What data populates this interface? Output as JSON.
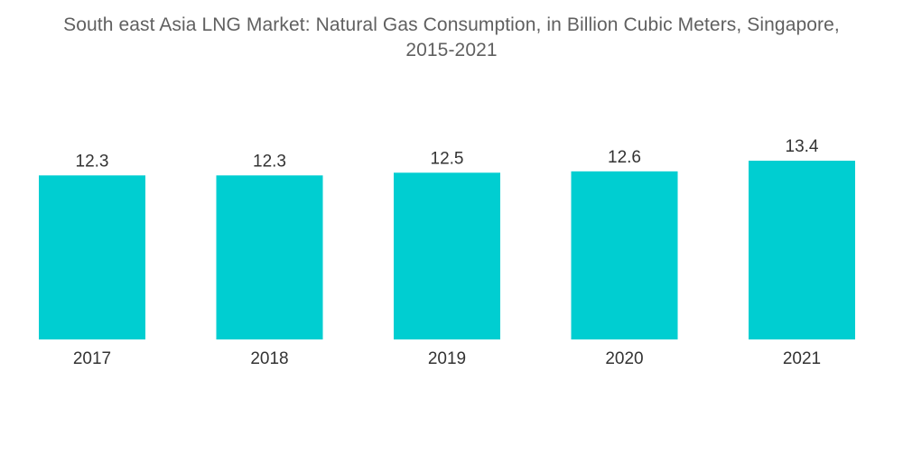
{
  "chart_data": {
    "type": "bar",
    "title_lines": [
      "South east Asia LNG Market: Natural Gas Consumption, in Billion Cubic Meters, Singapore,",
      "2015-2021"
    ],
    "categories": [
      "2017",
      "2018",
      "2019",
      "2020",
      "2021"
    ],
    "values": [
      12.3,
      12.3,
      12.5,
      12.6,
      13.4
    ],
    "value_labels": [
      "12.3",
      "12.3",
      "12.5",
      "12.6",
      "13.4"
    ],
    "xlabel": "",
    "ylabel": "",
    "ylim": [
      0,
      13.4
    ],
    "grid": false,
    "legend": "none",
    "bar_color": "#00CED1"
  }
}
